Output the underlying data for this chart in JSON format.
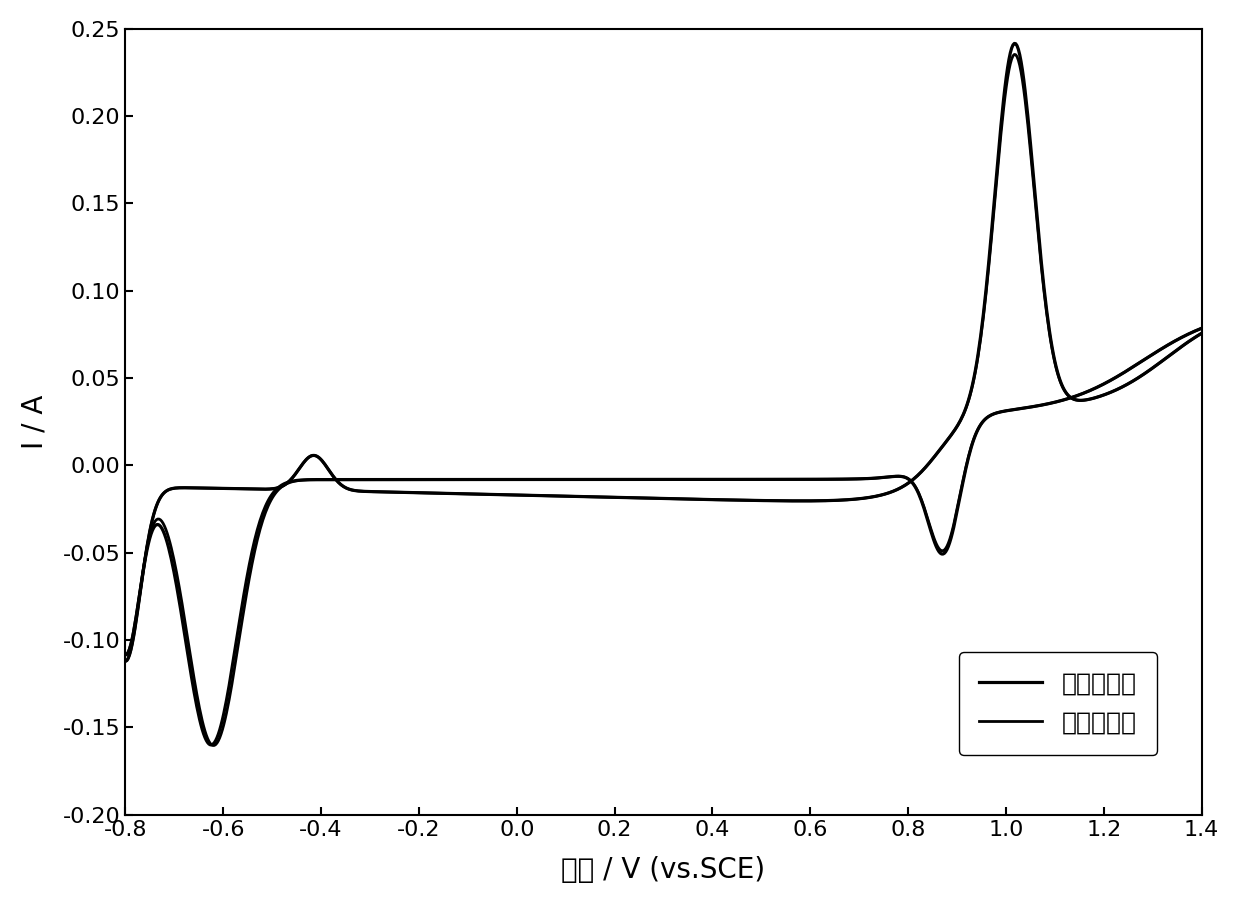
{
  "xlabel": "电位 / V (vs.SCE)",
  "ylabel": "I / A",
  "xlim": [
    -0.8,
    1.4
  ],
  "ylim": [
    -0.2,
    0.25
  ],
  "xticks": [
    -0.8,
    -0.6,
    -0.4,
    -0.2,
    0.0,
    0.2,
    0.4,
    0.6,
    0.8,
    1.0,
    1.2,
    1.4
  ],
  "yticks": [
    -0.2,
    -0.15,
    -0.1,
    -0.05,
    0.0,
    0.05,
    0.1,
    0.15,
    0.2,
    0.25
  ],
  "legend_labels": [
    "原始电解液",
    "再生电解液"
  ],
  "line_color": "#000000",
  "line_width": 2.0,
  "background_color": "#ffffff",
  "font_size_label": 20,
  "font_size_tick": 16,
  "font_size_legend": 18
}
